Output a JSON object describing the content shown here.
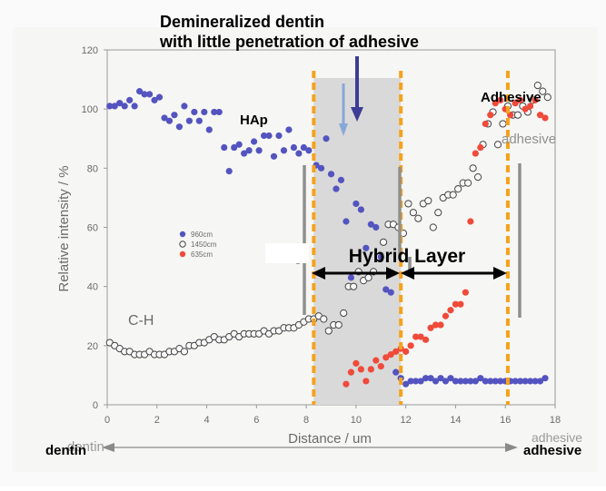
{
  "annotations": {
    "header_line1": "Demineralized dentin",
    "header_line2": "with little penetration of adhesive",
    "hap": "HAp",
    "adhesive_top": "Adhesive",
    "adhesive_faded": "adhesive",
    "ch": "C-H",
    "hybrid_layer": "Hybrid Layer",
    "dentin_bottom": "dentin",
    "adhesive_bottom": "adhesive"
  },
  "colors": {
    "blue": "#5454c0",
    "red": "#f04a3a",
    "open": "#444444",
    "orange": "#f5a21b",
    "band": "#d9d9d9",
    "arrow_blue": "#3d3d96",
    "arrow_light": "#88a8d8",
    "gray_bar": "#8f8f8f"
  },
  "chart_data": {
    "type": "scatter",
    "title": "",
    "xlabel": "Distance / um",
    "ylabel": "Relative intensity / %",
    "xlim": [
      0,
      18
    ],
    "ylim": [
      0,
      120
    ],
    "xticks": [
      "0",
      "2",
      "4",
      "6",
      "8",
      "10",
      "12",
      "14",
      "16",
      "18"
    ],
    "yticks": [
      "0",
      "20",
      "40",
      "60",
      "80",
      "100",
      "120"
    ],
    "legend": [
      "960cm",
      "1450cm",
      "635cm"
    ],
    "legend_placement": "center-left",
    "regions": {
      "hybrid_layer_start": 8.3,
      "hybrid_layer_end": 11.8,
      "adhesive_start": 16.1
    },
    "series": [
      {
        "name": "960cm",
        "style": "filled-blue",
        "points": [
          [
            0.1,
            101
          ],
          [
            0.3,
            101
          ],
          [
            0.5,
            102
          ],
          [
            0.7,
            101
          ],
          [
            0.9,
            103
          ],
          [
            1.1,
            101
          ],
          [
            1.3,
            106
          ],
          [
            1.5,
            105
          ],
          [
            1.7,
            105
          ],
          [
            1.9,
            103
          ],
          [
            2.1,
            104
          ],
          [
            2.3,
            97
          ],
          [
            2.5,
            96
          ],
          [
            2.7,
            98
          ],
          [
            2.9,
            94
          ],
          [
            3.1,
            101
          ],
          [
            3.3,
            96
          ],
          [
            3.5,
            99
          ],
          [
            3.7,
            96
          ],
          [
            3.9,
            99
          ],
          [
            4.1,
            93
          ],
          [
            4.3,
            99
          ],
          [
            4.5,
            99
          ],
          [
            4.7,
            87
          ],
          [
            4.9,
            79
          ],
          [
            5.1,
            87
          ],
          [
            5.3,
            88
          ],
          [
            5.5,
            85
          ],
          [
            5.7,
            86
          ],
          [
            5.9,
            89
          ],
          [
            6.1,
            86
          ],
          [
            6.3,
            91
          ],
          [
            6.5,
            91
          ],
          [
            6.7,
            84
          ],
          [
            6.9,
            91
          ],
          [
            7.1,
            86
          ],
          [
            7.3,
            93
          ],
          [
            7.5,
            87
          ],
          [
            7.7,
            85
          ],
          [
            7.9,
            87
          ],
          [
            8.1,
            86
          ],
          [
            8.4,
            81
          ],
          [
            8.6,
            80
          ],
          [
            8.8,
            90
          ],
          [
            9.0,
            78
          ],
          [
            9.2,
            73
          ],
          [
            9.4,
            76
          ],
          [
            9.6,
            62
          ],
          [
            9.8,
            43
          ],
          [
            10.0,
            68
          ],
          [
            10.2,
            66
          ],
          [
            10.4,
            53
          ],
          [
            10.6,
            61
          ],
          [
            10.8,
            60
          ],
          [
            11.0,
            50
          ],
          [
            11.2,
            39
          ],
          [
            11.4,
            38
          ],
          [
            11.6,
            11
          ],
          [
            11.8,
            9
          ],
          [
            12.0,
            7
          ],
          [
            12.2,
            8
          ],
          [
            12.4,
            8
          ],
          [
            12.6,
            8
          ],
          [
            12.8,
            9
          ],
          [
            13.0,
            9
          ],
          [
            13.2,
            8
          ],
          [
            13.4,
            9
          ],
          [
            13.6,
            8
          ],
          [
            13.8,
            9
          ],
          [
            14.0,
            8
          ],
          [
            14.2,
            8
          ],
          [
            14.4,
            8
          ],
          [
            14.6,
            8
          ],
          [
            14.8,
            8
          ],
          [
            15.0,
            9
          ],
          [
            15.2,
            8
          ],
          [
            15.4,
            8
          ],
          [
            15.6,
            8
          ],
          [
            15.8,
            8
          ],
          [
            16.0,
            8
          ],
          [
            16.2,
            8
          ],
          [
            16.4,
            8
          ],
          [
            16.6,
            8
          ],
          [
            16.8,
            8
          ],
          [
            17.0,
            8
          ],
          [
            17.2,
            8
          ],
          [
            17.4,
            8
          ],
          [
            17.6,
            9
          ]
        ]
      },
      {
        "name": "1450cm",
        "style": "open",
        "points": [
          [
            0.1,
            21
          ],
          [
            0.3,
            20
          ],
          [
            0.5,
            19
          ],
          [
            0.7,
            18
          ],
          [
            0.9,
            18
          ],
          [
            1.1,
            17
          ],
          [
            1.3,
            17
          ],
          [
            1.5,
            17
          ],
          [
            1.7,
            18
          ],
          [
            1.9,
            17
          ],
          [
            2.1,
            17
          ],
          [
            2.3,
            17
          ],
          [
            2.5,
            18
          ],
          [
            2.7,
            18
          ],
          [
            2.9,
            19
          ],
          [
            3.1,
            18
          ],
          [
            3.3,
            20
          ],
          [
            3.5,
            20
          ],
          [
            3.7,
            21
          ],
          [
            3.9,
            21
          ],
          [
            4.1,
            22
          ],
          [
            4.3,
            23
          ],
          [
            4.5,
            22
          ],
          [
            4.7,
            22
          ],
          [
            4.9,
            23
          ],
          [
            5.1,
            24
          ],
          [
            5.3,
            23
          ],
          [
            5.5,
            24
          ],
          [
            5.7,
            24
          ],
          [
            5.9,
            24
          ],
          [
            6.1,
            24
          ],
          [
            6.3,
            25
          ],
          [
            6.5,
            24
          ],
          [
            6.7,
            25
          ],
          [
            6.9,
            25
          ],
          [
            7.1,
            26
          ],
          [
            7.3,
            26
          ],
          [
            7.5,
            26
          ],
          [
            7.7,
            27
          ],
          [
            7.9,
            28
          ],
          [
            8.1,
            29
          ],
          [
            8.3,
            29
          ],
          [
            8.5,
            30
          ],
          [
            8.7,
            29
          ],
          [
            8.9,
            25
          ],
          [
            9.1,
            27
          ],
          [
            9.3,
            27
          ],
          [
            9.5,
            31
          ],
          [
            9.7,
            40
          ],
          [
            9.9,
            40
          ],
          [
            10.1,
            45
          ],
          [
            10.3,
            42
          ],
          [
            10.5,
            43
          ],
          [
            10.7,
            45
          ],
          [
            10.9,
            50
          ],
          [
            11.1,
            55
          ],
          [
            11.3,
            61
          ],
          [
            11.5,
            61
          ],
          [
            11.7,
            60
          ],
          [
            11.9,
            58
          ],
          [
            12.1,
            68
          ],
          [
            12.3,
            65
          ],
          [
            12.5,
            63
          ],
          [
            12.7,
            68
          ],
          [
            12.9,
            69
          ],
          [
            13.1,
            60
          ],
          [
            13.3,
            65
          ],
          [
            13.5,
            70
          ],
          [
            13.7,
            71
          ],
          [
            13.9,
            71
          ],
          [
            14.1,
            73
          ],
          [
            14.3,
            75
          ],
          [
            14.5,
            75
          ],
          [
            14.7,
            80
          ],
          [
            14.9,
            77
          ],
          [
            15.1,
            88
          ],
          [
            15.3,
            95
          ],
          [
            15.5,
            99
          ],
          [
            15.7,
            88
          ],
          [
            15.9,
            95
          ],
          [
            16.1,
            101
          ],
          [
            16.3,
            98
          ],
          [
            16.5,
            98
          ],
          [
            16.7,
            101
          ],
          [
            16.9,
            99
          ],
          [
            17.1,
            103
          ],
          [
            17.3,
            108
          ],
          [
            17.5,
            106
          ],
          [
            17.7,
            104
          ]
        ]
      },
      {
        "name": "635cm",
        "style": "filled-red",
        "points": [
          [
            9.6,
            7
          ],
          [
            9.8,
            11
          ],
          [
            10.0,
            14
          ],
          [
            10.2,
            12
          ],
          [
            10.4,
            8
          ],
          [
            10.6,
            12
          ],
          [
            10.8,
            15
          ],
          [
            11.0,
            13
          ],
          [
            11.2,
            16
          ],
          [
            11.4,
            17
          ],
          [
            11.6,
            18
          ],
          [
            11.8,
            19
          ],
          [
            12.0,
            18
          ],
          [
            12.2,
            20
          ],
          [
            12.4,
            23
          ],
          [
            12.6,
            23
          ],
          [
            12.8,
            22
          ],
          [
            13.0,
            26
          ],
          [
            13.2,
            27
          ],
          [
            13.4,
            27
          ],
          [
            13.6,
            30
          ],
          [
            13.8,
            32
          ],
          [
            14.0,
            34
          ],
          [
            14.2,
            34
          ],
          [
            14.4,
            38
          ],
          [
            14.6,
            62
          ],
          [
            14.8,
            85
          ],
          [
            15.0,
            87
          ],
          [
            15.2,
            95
          ],
          [
            15.4,
            98
          ],
          [
            15.6,
            102
          ],
          [
            15.8,
            103
          ],
          [
            16.0,
            100
          ],
          [
            16.2,
            98
          ],
          [
            16.4,
            102
          ],
          [
            16.6,
            103
          ],
          [
            16.8,
            100
          ],
          [
            17.0,
            101
          ],
          [
            17.2,
            103
          ],
          [
            17.4,
            98
          ],
          [
            17.6,
            97
          ]
        ]
      }
    ]
  }
}
